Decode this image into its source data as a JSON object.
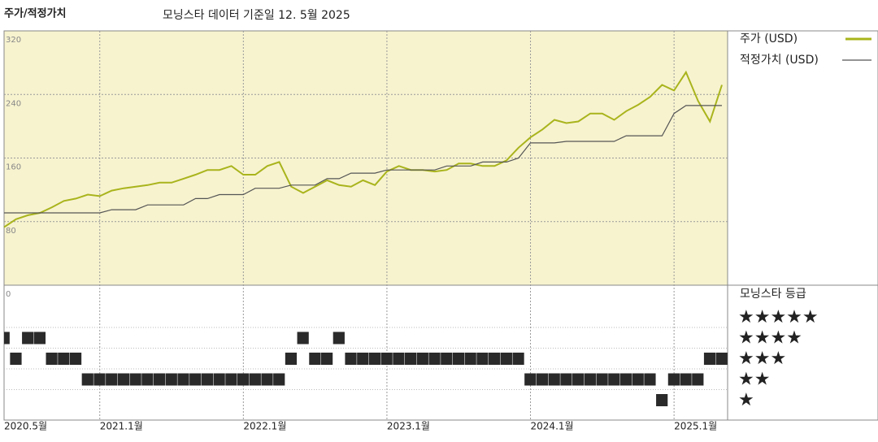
{
  "chart_data": {
    "type": "line",
    "title": "주가/적정가치",
    "subtitle": "모닝스타 데이터 기준일 12. 5월 2025",
    "x": [
      "2020-05",
      "2020-06",
      "2020-07",
      "2020-08",
      "2020-09",
      "2020-10",
      "2020-11",
      "2020-12",
      "2021-01",
      "2021-02",
      "2021-03",
      "2021-04",
      "2021-05",
      "2021-06",
      "2021-07",
      "2021-08",
      "2021-09",
      "2021-10",
      "2021-11",
      "2021-12",
      "2022-01",
      "2022-02",
      "2022-03",
      "2022-04",
      "2022-05",
      "2022-06",
      "2022-07",
      "2022-08",
      "2022-09",
      "2022-10",
      "2022-11",
      "2022-12",
      "2023-01",
      "2023-02",
      "2023-03",
      "2023-04",
      "2023-05",
      "2023-06",
      "2023-07",
      "2023-08",
      "2023-09",
      "2023-10",
      "2023-11",
      "2023-12",
      "2024-01",
      "2024-02",
      "2024-03",
      "2024-04",
      "2024-05",
      "2024-06",
      "2024-07",
      "2024-08",
      "2024-09",
      "2024-10",
      "2024-11",
      "2024-12",
      "2025-01",
      "2025-02",
      "2025-03",
      "2025-04",
      "2025-05"
    ],
    "series": [
      {
        "name": "주가 (USD)",
        "color": "#a9b41c",
        "values": [
          73,
          83,
          88,
          91,
          98,
          106,
          109,
          114,
          112,
          119,
          122,
          124,
          126,
          129,
          129,
          134,
          139,
          145,
          145,
          150,
          139,
          139,
          150,
          155,
          124,
          116,
          124,
          132,
          126,
          124,
          132,
          126,
          143,
          150,
          145,
          145,
          143,
          145,
          153,
          153,
          150,
          150,
          157,
          173,
          186,
          196,
          208,
          204,
          206,
          216,
          216,
          208,
          219,
          227,
          237,
          252,
          245,
          268,
          232,
          206,
          252
        ]
      },
      {
        "name": "적정가치 (USD)",
        "color": "#555555",
        "values": [
          91,
          91,
          91,
          91,
          91,
          91,
          91,
          91,
          91,
          95,
          95,
          95,
          101,
          101,
          101,
          101,
          109,
          109,
          114,
          114,
          114,
          122,
          122,
          122,
          126,
          126,
          126,
          134,
          134,
          141,
          141,
          141,
          145,
          145,
          145,
          145,
          145,
          150,
          150,
          150,
          155,
          155,
          155,
          160,
          179,
          179,
          179,
          181,
          181,
          181,
          181,
          181,
          188,
          188,
          188,
          188,
          216,
          226,
          226,
          226,
          226
        ]
      }
    ],
    "ylim": [
      0,
      320
    ],
    "yticks": [
      0,
      80,
      160,
      240,
      320
    ],
    "xticks": [
      {
        "value": "2020-05",
        "label": "2020.5월"
      },
      {
        "value": "2021-01",
        "label": "2021.1월"
      },
      {
        "value": "2022-01",
        "label": "2022.1월"
      },
      {
        "value": "2023-01",
        "label": "2023.1월"
      },
      {
        "value": "2024-01",
        "label": "2024.1월"
      },
      {
        "value": "2025-01",
        "label": "2025.1월"
      }
    ],
    "grid": true,
    "ratings": {
      "title": "모닝스타 등급",
      "labels": [
        "★★★★★",
        "★★★★",
        "★★★",
        "★★",
        "★"
      ],
      "values": [
        4,
        3,
        4,
        4,
        3,
        3,
        3,
        2,
        2,
        2,
        2,
        2,
        2,
        2,
        2,
        2,
        2,
        2,
        2,
        2,
        2,
        2,
        2,
        2,
        3,
        4,
        3,
        3,
        4,
        3,
        3,
        3,
        3,
        3,
        3,
        3,
        3,
        3,
        3,
        3,
        3,
        3,
        3,
        3,
        2,
        2,
        2,
        2,
        2,
        2,
        2,
        2,
        2,
        2,
        2,
        1,
        2,
        2,
        2,
        3,
        3
      ]
    }
  }
}
